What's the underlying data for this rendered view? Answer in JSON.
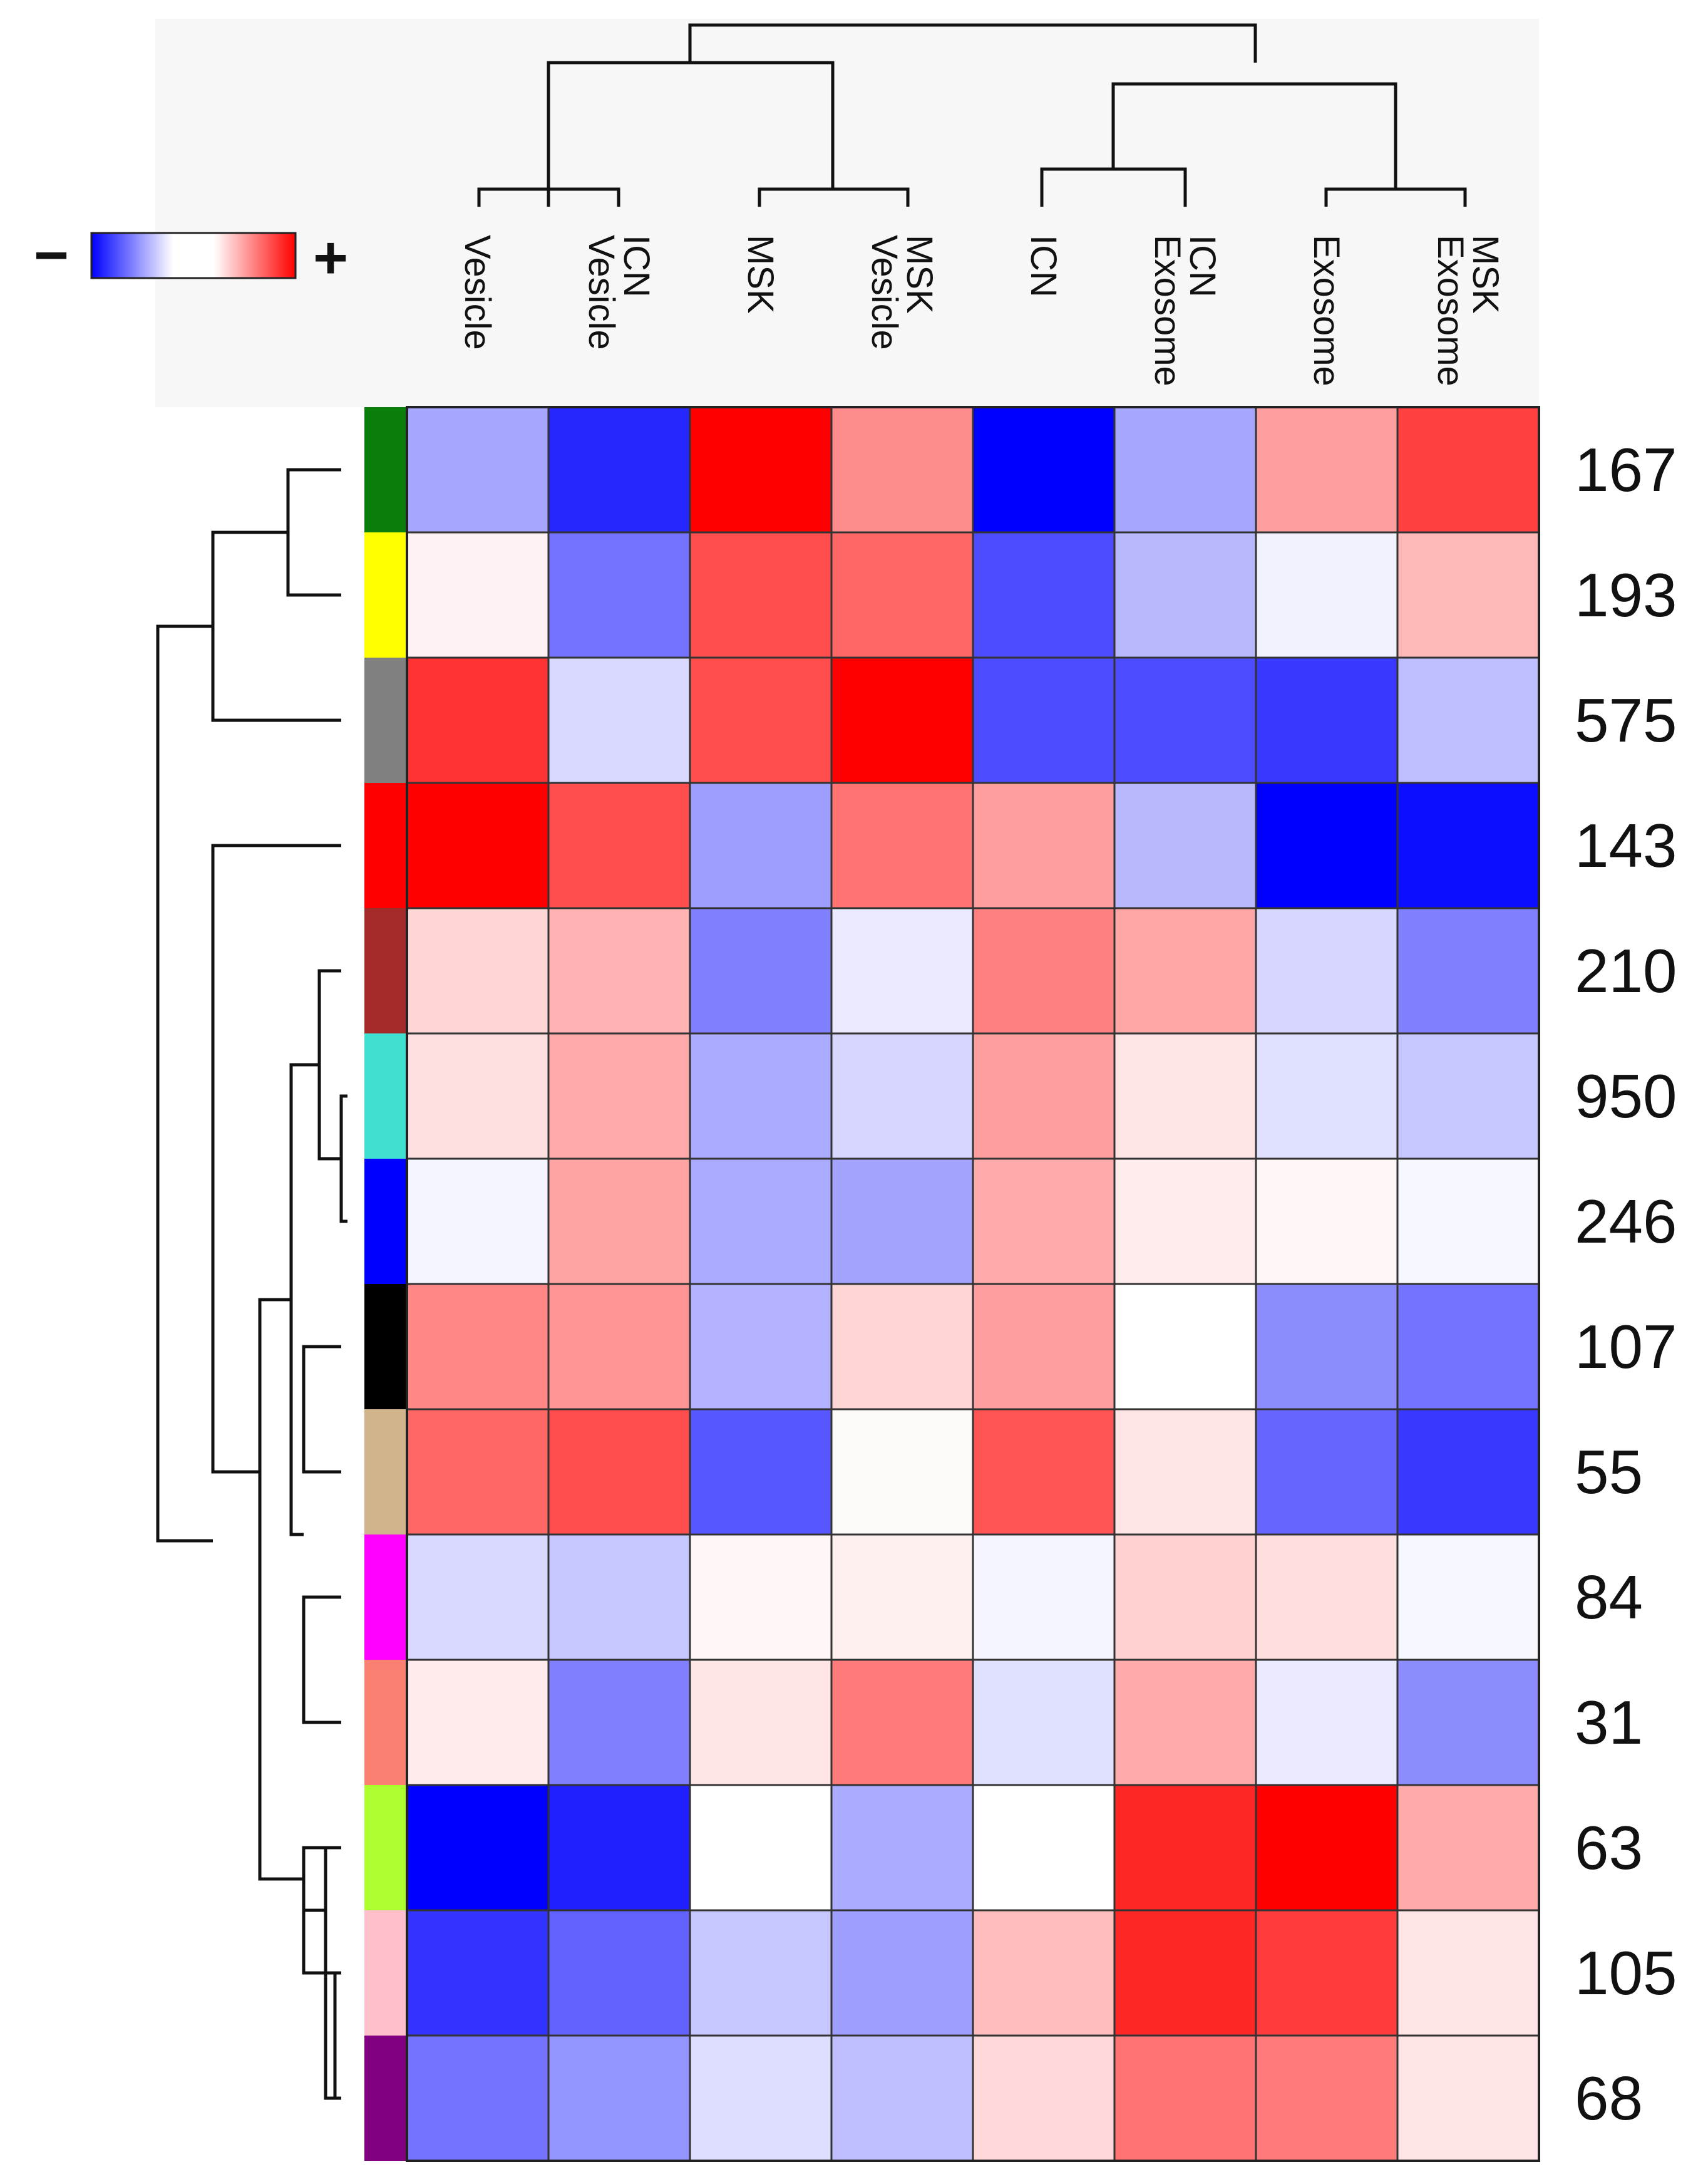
{
  "chart_data": {
    "type": "heatmap",
    "columns": [
      [
        "Vesicle"
      ],
      [
        "Vesicle",
        "ICN"
      ],
      [
        "MSK"
      ],
      [
        "Vesicle",
        "MSK"
      ],
      [
        "ICN"
      ],
      [
        "Exosome",
        "ICN"
      ],
      [
        "Exosome"
      ],
      [
        "Exosome",
        "MSK"
      ]
    ],
    "rows": [
      "167",
      "193",
      "575",
      "143",
      "210",
      "950",
      "246",
      "107",
      "55",
      "84",
      "31",
      "63",
      "105",
      "68"
    ],
    "row_colors": [
      "#0a7d0a",
      "#ffff00",
      "#808080",
      "#ff0000",
      "#a52a2a",
      "#40e0d0",
      "#0000ff",
      "#000000",
      "#d2b48c",
      "#ff00ff",
      "#fa8072",
      "#adff2f",
      "#ffc0cb",
      "#800080"
    ],
    "values": [
      [
        -0.35,
        -0.85,
        1.0,
        0.45,
        -1.0,
        -0.35,
        0.38,
        0.75
      ],
      [
        0.05,
        -0.55,
        0.7,
        0.6,
        -0.7,
        -0.28,
        -0.05,
        0.28
      ],
      [
        0.8,
        -0.15,
        0.7,
        1.0,
        -0.7,
        -0.7,
        -0.78,
        -0.25
      ],
      [
        1.0,
        0.7,
        -0.38,
        0.55,
        0.38,
        -0.28,
        -1.0,
        -0.95
      ],
      [
        0.16,
        0.3,
        -0.5,
        -0.08,
        0.5,
        0.35,
        -0.16,
        -0.5
      ],
      [
        0.12,
        0.33,
        -0.33,
        -0.16,
        0.38,
        0.1,
        -0.12,
        -0.22
      ],
      [
        -0.04,
        0.36,
        -0.33,
        -0.36,
        0.33,
        0.07,
        0.03,
        -0.03
      ],
      [
        0.47,
        0.42,
        -0.3,
        0.16,
        0.38,
        0.0,
        -0.45,
        -0.55
      ],
      [
        0.6,
        0.7,
        -0.66,
        0.02,
        0.67,
        0.1,
        -0.6,
        -0.78
      ],
      [
        -0.15,
        -0.22,
        0.03,
        0.06,
        -0.04,
        0.18,
        0.13,
        -0.03
      ],
      [
        0.08,
        -0.5,
        0.1,
        0.52,
        -0.12,
        0.33,
        -0.08,
        -0.45
      ],
      [
        -1.0,
        -0.88,
        0.0,
        -0.33,
        0.0,
        0.85,
        1.0,
        0.33
      ],
      [
        -0.8,
        -0.62,
        -0.22,
        -0.38,
        0.26,
        0.85,
        0.77,
        0.1
      ],
      [
        -0.55,
        -0.42,
        -0.13,
        -0.25,
        0.15,
        0.55,
        0.52,
        0.1
      ]
    ],
    "value_range": [
      -1,
      1
    ],
    "colormap": {
      "low": "#0000ff",
      "mid": "#ffffff",
      "high": "#ff0000"
    },
    "legend": {
      "minus_label": "−",
      "plus_label": "+",
      "placement": "top-left"
    },
    "row_dendrogram": true,
    "column_dendrogram": true
  }
}
